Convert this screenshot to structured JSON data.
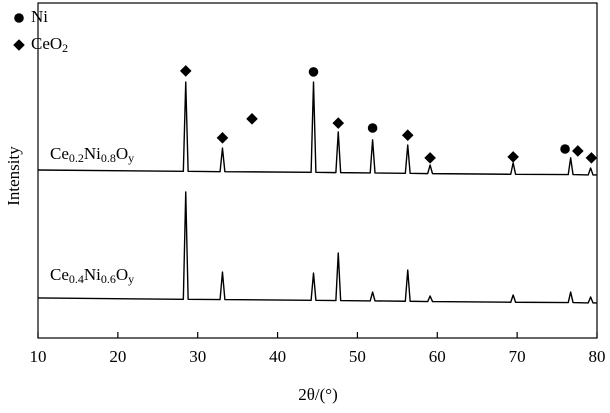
{
  "chart_data": {
    "type": "line",
    "x_label": "2θ/(°)",
    "y_label": "Intensity",
    "xlim": [
      10,
      80
    ],
    "xticks": [
      10,
      20,
      30,
      40,
      50,
      60,
      70,
      80
    ],
    "ylim": [
      0,
      102.1
    ],
    "x": [
      10,
      28.2,
      28.5,
      28.8,
      32.8,
      33.1,
      33.4,
      44.2,
      44.5,
      44.8,
      47.3,
      47.6,
      47.9,
      51.6,
      51.9,
      52.2,
      56.0,
      56.3,
      56.6,
      58.8,
      59.1,
      59.4,
      69.2,
      69.5,
      69.8,
      76.4,
      76.7,
      77.0,
      78.9,
      79.2,
      79.5,
      80
    ],
    "series": [
      {
        "label": [
          "Ce",
          "0.2",
          "Ni",
          "0.8",
          "O",
          "y"
        ],
        "color": "#000000",
        "values": [
          51.2,
          50.8,
          78.0,
          50.8,
          50.7,
          57.9,
          50.7,
          50.5,
          78.0,
          50.5,
          50.4,
          62.8,
          50.4,
          50.3,
          60.4,
          50.3,
          50.2,
          58.8,
          50.2,
          50.1,
          52.7,
          50.1,
          49.9,
          53.4,
          49.9,
          49.8,
          54.9,
          49.8,
          49.7,
          51.8,
          49.7,
          49.7
        ]
      },
      {
        "label": [
          "Ce",
          "0.4",
          "Ni",
          "0.6",
          "O",
          "y"
        ],
        "color": "#000000",
        "values": [
          12.2,
          11.8,
          44.5,
          11.8,
          11.7,
          20.1,
          11.7,
          11.5,
          19.8,
          11.5,
          11.4,
          25.9,
          11.4,
          11.3,
          14.0,
          11.3,
          11.2,
          20.7,
          11.2,
          11.1,
          12.8,
          11.1,
          10.9,
          13.1,
          10.9,
          10.8,
          14.0,
          10.8,
          10.7,
          12.5,
          10.7,
          10.7
        ]
      }
    ],
    "markers": [
      {
        "name": [
          "Ni"
        ],
        "shape": "circle",
        "color": "#000000",
        "x": [
          44.5,
          51.9,
          76.0
        ],
        "values": [
          81.1,
          64.0,
          57.6
        ]
      },
      {
        "name": [
          "CeO",
          "2"
        ],
        "shape": "diamond",
        "color": "#000000",
        "x": [
          28.5,
          33.1,
          36.8,
          47.6,
          56.3,
          59.1,
          69.5,
          77.6,
          79.3
        ],
        "values": [
          81.4,
          61.0,
          66.8,
          65.5,
          61.8,
          54.9,
          55.2,
          57.0,
          54.9
        ]
      }
    ],
    "legend": "upper left",
    "grid": false
  }
}
